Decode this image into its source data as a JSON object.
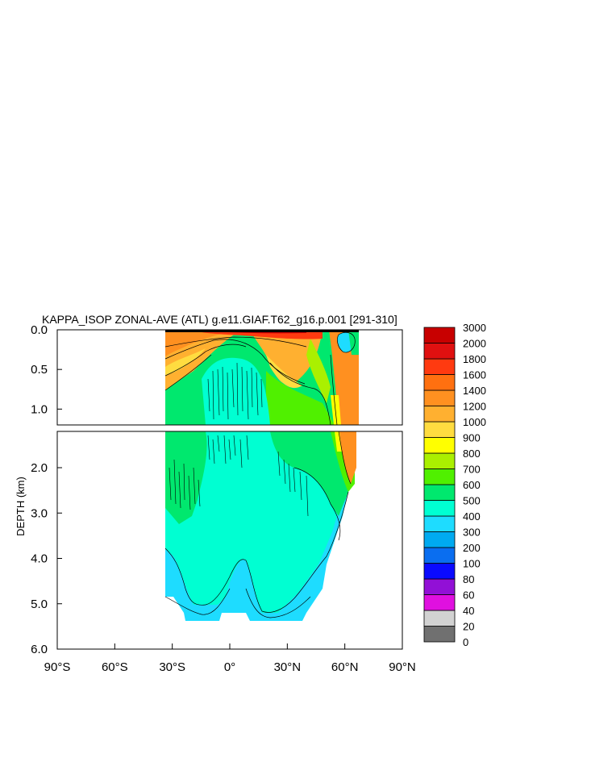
{
  "chart_data": {
    "type": "heatmap",
    "title": "KAPPA_ISOP ZONAL-AVE (ATL) g.e11.GIAF.T62_g16.p.001 [291-310]",
    "ylabel": "DEPTH (km)",
    "xlabel": "",
    "xlim": [
      -90,
      90
    ],
    "x_ticks": [
      "90°S",
      "60°S",
      "30°S",
      "0°",
      "30°N",
      "60°N",
      "90°N"
    ],
    "upper_panel": {
      "ylim": [
        0.0,
        1.2
      ],
      "y_ticks": [
        "0.0",
        "0.5",
        "1.0"
      ]
    },
    "lower_panel": {
      "ylim": [
        1.2,
        6.0
      ],
      "y_ticks": [
        "2.0",
        "3.0",
        "4.0",
        "5.0",
        "6.0"
      ]
    },
    "colorbar_levels": [
      "0",
      "20",
      "40",
      "60",
      "80",
      "100",
      "200",
      "300",
      "400",
      "500",
      "600",
      "700",
      "800",
      "900",
      "1000",
      "1200",
      "1400",
      "1600",
      "1800",
      "2000",
      "3000"
    ],
    "colorbar_colors": [
      "#707070",
      "#d2d2d2",
      "#e010e0",
      "#9210d6",
      "#0a0aff",
      "#0a6ef0",
      "#00aaf0",
      "#1edcff",
      "#00ffd2",
      "#00e86e",
      "#50f000",
      "#aaf000",
      "#ffff00",
      "#ffdc40",
      "#ffb030",
      "#ff9020",
      "#ff7010",
      "#ff3a10",
      "#e01010",
      "#c80000"
    ]
  }
}
